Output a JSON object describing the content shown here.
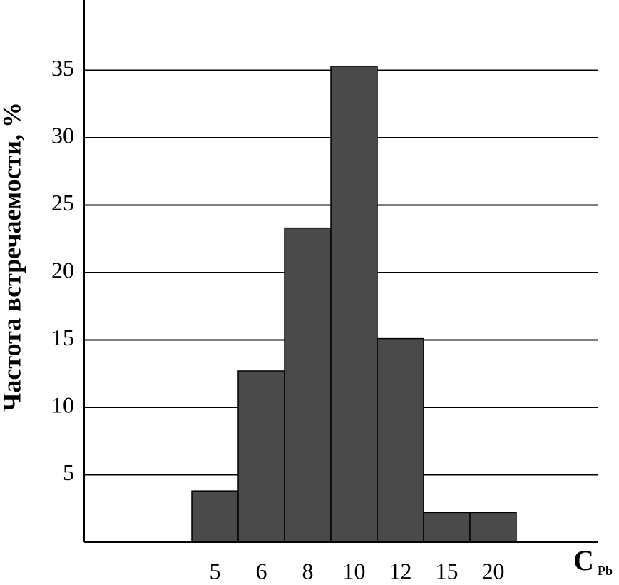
{
  "chart_data": {
    "type": "bar",
    "y_label": "Частота встречаемости, %",
    "x_label": "C",
    "x_label_sub": "Pb",
    "categories": [
      "5",
      "6",
      "8",
      "10",
      "12",
      "15",
      "20"
    ],
    "values": [
      3.8,
      12.7,
      23.3,
      35.3,
      15.1,
      2.2,
      2.2
    ],
    "color": "#4a4a4a",
    "ylim": [
      0,
      40
    ],
    "yticks": [
      5,
      10,
      15,
      20,
      25,
      30,
      35
    ],
    "grid": true
  }
}
